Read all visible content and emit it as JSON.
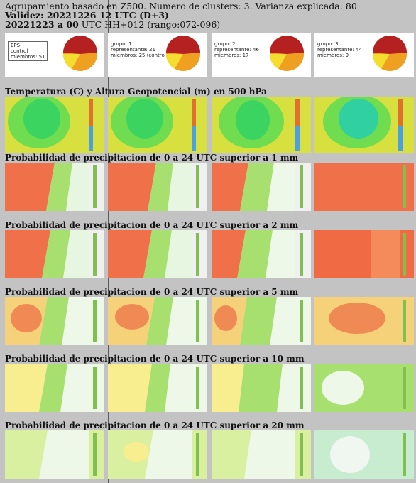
{
  "header": {
    "line1": "Agrupamiento basado en Z500. Numero de clusters: 3. Varianza explicada: 80",
    "line2": "Validez: 20221226 12 UTC (D+3)",
    "line3_bold": "20221223 a 00",
    "line3_rest": " UTC HH+012 (rango:072-096)"
  },
  "clusters": [
    {
      "line1": "EPS",
      "line2": "control",
      "line3": "miembros: 51"
    },
    {
      "line1": "grupo: 1",
      "line2": "representante: 21",
      "line3": "miembros: 25 (control)"
    },
    {
      "line1": "grupo: 2",
      "line2": "representante: 46",
      "line3": "miembros: 17"
    },
    {
      "line1": "grupo: 3",
      "line2": "representante: 44",
      "line3": "miembros: 9"
    }
  ],
  "sections": [
    "Temperatura (C) y Altura Geopotencial (m) en 500 hPa",
    "Probabilidad de precipitacion de 0 a 24 UTC superior a 1 mm",
    "Probabilidad de precipitacion de 0 a 24 UTC superior a 2 mm",
    "Probabilidad de precipitacion de 0 a 24 UTC superior a 5 mm",
    "Probabilidad de precipitacion de 0 a 24 UTC superior a 10 mm",
    "Probabilidad de precipitacion de 0 a 24 UTC superior a 20 mm"
  ],
  "colors": {
    "page_bg": "#c3c3c3",
    "pie_red": "#b52020",
    "pie_orange": "#f0a020",
    "pie_yellow": "#f5dd30",
    "precip_high": "#f0704a",
    "precip_mid": "#f5d27a",
    "precip_low": "#a8e070",
    "temp_green": "#44dd55"
  }
}
